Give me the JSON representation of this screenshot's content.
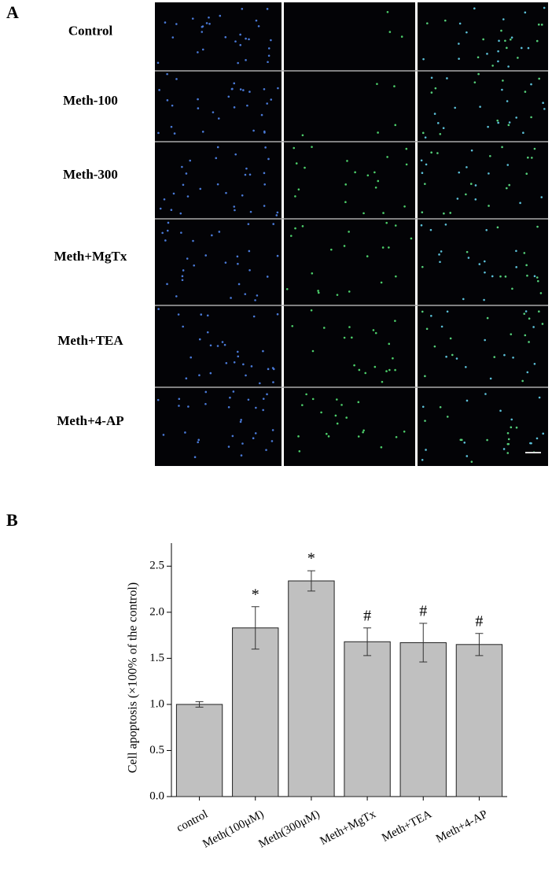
{
  "panel_a": {
    "label": "A",
    "rows": [
      "Control",
      "Meth-100",
      "Meth-300",
      "Meth+MgTx",
      "Meth+TEA",
      "Meth+4-AP"
    ]
  },
  "panel_b": {
    "label": "B"
  },
  "chart_data": {
    "type": "bar",
    "ylabel": "Cell apoptosis (×100% of the control)",
    "categories": [
      "control",
      "Meth(100μM)",
      "Meth(300μM)",
      "Meth+MgTx",
      "Meth+TEA",
      "Meth+4-AP"
    ],
    "values": [
      1.0,
      1.83,
      2.34,
      1.68,
      1.67,
      1.65
    ],
    "errors": [
      0.03,
      0.23,
      0.11,
      0.15,
      0.21,
      0.12
    ],
    "annotations": [
      null,
      "*",
      "*",
      "#",
      "#",
      "#"
    ],
    "color": "#c0c0c0",
    "ylim": [
      0,
      2.75
    ],
    "yticks": [
      {
        "value": 0,
        "label": "0.0"
      },
      0.5,
      {
        "value": 1,
        "label": "1.0"
      },
      1.5,
      {
        "value": 2,
        "label": "2.0"
      },
      2.5
    ]
  }
}
